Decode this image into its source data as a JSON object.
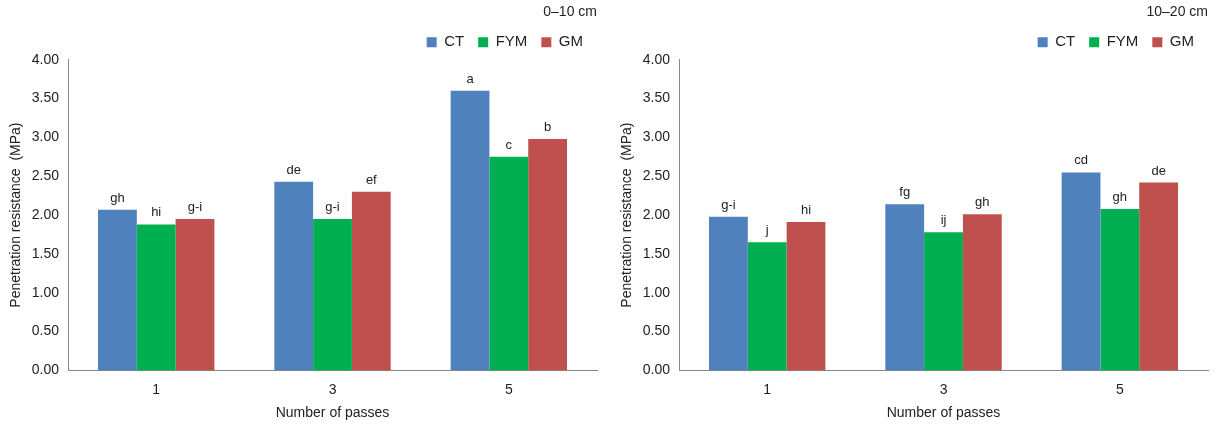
{
  "chart_data": [
    {
      "type": "bar",
      "title": "0–10 cm",
      "xlabel": "Number of passes",
      "ylabel": "Penetration resistance  (MPa)",
      "categories": [
        "1",
        "3",
        "5"
      ],
      "series": [
        {
          "name": "CT",
          "color": "#4f81bd",
          "values": [
            2.07,
            2.43,
            3.6
          ],
          "value_labels": [
            "gh",
            "de",
            "a"
          ]
        },
        {
          "name": "FYM",
          "color": "#00b050",
          "values": [
            1.88,
            1.95,
            2.75
          ],
          "value_labels": [
            "hi",
            "g-i",
            "c"
          ]
        },
        {
          "name": "GM",
          "color": "#c0504d",
          "values": [
            1.95,
            2.3,
            2.98
          ],
          "value_labels": [
            "g-i",
            "ef",
            "b"
          ]
        }
      ],
      "ylim": [
        0,
        4
      ],
      "yticks": [
        {
          "value": 0,
          "label": "0.00"
        },
        {
          "value": 0.5,
          "label": "0.50"
        },
        {
          "value": 1,
          "label": "1.00"
        },
        {
          "value": 1.5,
          "label": "1.50"
        },
        {
          "value": 2,
          "label": "2.00"
        },
        {
          "value": 2.5,
          "label": "2.50"
        },
        {
          "value": 3,
          "label": "3.00"
        },
        {
          "value": 3.5,
          "label": "3.50"
        },
        {
          "value": 4,
          "label": "4.00"
        }
      ],
      "legend": "top right"
    },
    {
      "type": "bar",
      "title": "10–20 cm",
      "xlabel": "Number of passes",
      "ylabel": "Penetration resistance  (MPa)",
      "categories": [
        "1",
        "3",
        "5"
      ],
      "series": [
        {
          "name": "CT",
          "color": "#4f81bd",
          "values": [
            1.98,
            2.14,
            2.55
          ],
          "value_labels": [
            "g-i",
            "fg",
            "cd"
          ]
        },
        {
          "name": "FYM",
          "color": "#00b050",
          "values": [
            1.65,
            1.78,
            2.08
          ],
          "value_labels": [
            "j",
            "ij",
            "gh"
          ]
        },
        {
          "name": "GM",
          "color": "#c0504d",
          "values": [
            1.91,
            2.01,
            2.42
          ],
          "value_labels": [
            "hi",
            "gh",
            "de"
          ]
        }
      ],
      "ylim": [
        0,
        4
      ],
      "yticks": [
        {
          "value": 0,
          "label": "0.00"
        },
        {
          "value": 0.5,
          "label": "0.50"
        },
        {
          "value": 1,
          "label": "1.00"
        },
        {
          "value": 1.5,
          "label": "1.50"
        },
        {
          "value": 2,
          "label": "2.00"
        },
        {
          "value": 2.5,
          "label": "2.50"
        },
        {
          "value": 3,
          "label": "3.00"
        },
        {
          "value": 3.5,
          "label": "3.50"
        },
        {
          "value": 4,
          "label": "4.00"
        }
      ],
      "legend": "top right"
    }
  ]
}
